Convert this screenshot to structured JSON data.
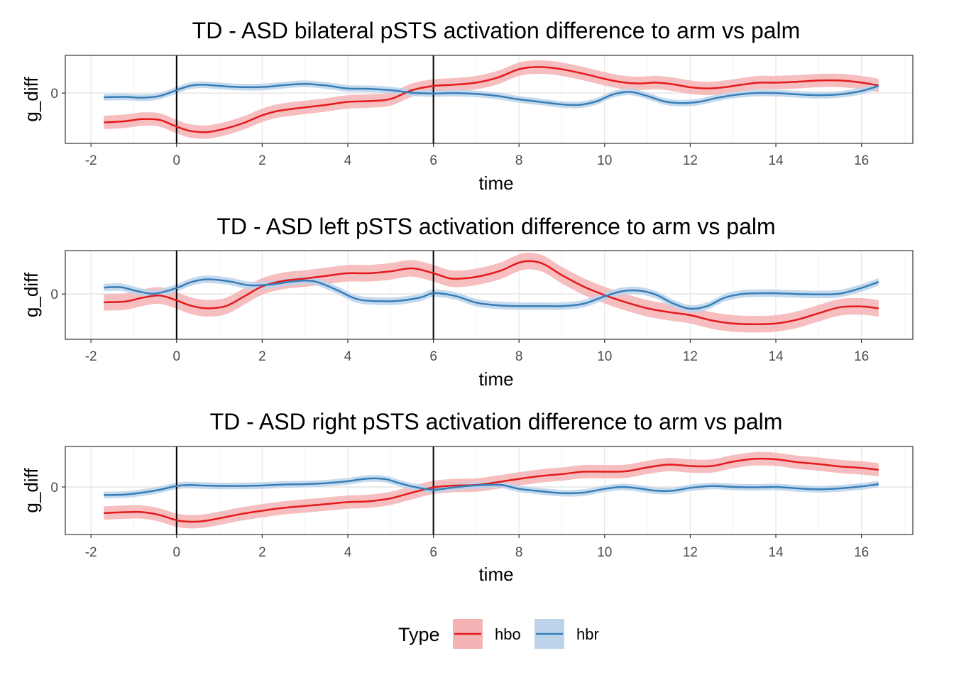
{
  "legend": {
    "title": "Type",
    "entries": [
      {
        "label": "hbo",
        "color": "#e41a1c",
        "fill": "#f4b3b4"
      },
      {
        "label": "hbr",
        "color": "#377eb8",
        "fill": "#bcd3ea"
      }
    ],
    "position": "bottom"
  },
  "chart_data": [
    {
      "type": "line",
      "title": "TD - ASD bilateral pSTS activation difference to arm vs palm",
      "xlabel": "time",
      "ylabel": "g_diff",
      "xlim": [
        -2.6,
        17.2
      ],
      "ylim": [
        -1.2,
        0.9
      ],
      "x_ticks": [
        -2,
        0,
        2,
        4,
        6,
        8,
        10,
        12,
        14,
        16
      ],
      "y_ticks": [
        0
      ],
      "vlines": [
        0,
        6
      ],
      "grid": true,
      "series": [
        {
          "name": "hbo",
          "x": [
            -1.7,
            -1.2,
            -0.8,
            -0.4,
            0,
            0.3,
            0.6,
            0.8,
            1.2,
            1.6,
            2,
            2.4,
            3,
            3.5,
            4,
            4.5,
            5,
            5.5,
            6,
            6.5,
            7,
            7.5,
            8,
            8.4,
            8.8,
            9.2,
            9.6,
            10,
            10.4,
            10.8,
            11.2,
            11.6,
            12,
            12.4,
            12.8,
            13.2,
            13.6,
            14,
            14.5,
            15,
            15.5,
            16,
            16.4
          ],
          "y": [
            -0.7,
            -0.67,
            -0.62,
            -0.64,
            -0.8,
            -0.9,
            -0.93,
            -0.92,
            -0.83,
            -0.7,
            -0.53,
            -0.42,
            -0.34,
            -0.28,
            -0.21,
            -0.19,
            -0.14,
            0.07,
            0.17,
            0.2,
            0.25,
            0.37,
            0.57,
            0.62,
            0.6,
            0.53,
            0.44,
            0.34,
            0.26,
            0.23,
            0.25,
            0.21,
            0.14,
            0.11,
            0.14,
            0.2,
            0.25,
            0.25,
            0.27,
            0.3,
            0.3,
            0.25,
            0.18
          ],
          "band": 0.16
        },
        {
          "name": "hbr",
          "x": [
            -1.7,
            -1.2,
            -0.8,
            -0.4,
            0,
            0.3,
            0.6,
            0.9,
            1.3,
            1.7,
            2.1,
            2.5,
            3,
            3.5,
            4,
            4.5,
            5,
            5.5,
            6,
            6.5,
            7,
            7.5,
            8,
            8.5,
            9,
            9.4,
            9.8,
            10.2,
            10.6,
            11,
            11.4,
            11.8,
            12.2,
            12.6,
            13,
            13.5,
            14,
            14.5,
            15,
            15.5,
            16,
            16.4
          ],
          "y": [
            -0.1,
            -0.09,
            -0.11,
            -0.07,
            0.07,
            0.17,
            0.2,
            0.18,
            0.15,
            0.14,
            0.15,
            0.19,
            0.22,
            0.18,
            0.11,
            0.1,
            0.07,
            0.01,
            -0.01,
            0,
            -0.02,
            -0.07,
            -0.15,
            -0.21,
            -0.27,
            -0.28,
            -0.2,
            -0.03,
            0.03,
            -0.07,
            -0.2,
            -0.24,
            -0.21,
            -0.12,
            -0.05,
            0,
            0,
            -0.03,
            -0.05,
            -0.03,
            0.05,
            0.17
          ],
          "band": 0.08
        }
      ]
    },
    {
      "type": "line",
      "title": "TD - ASD left pSTS activation difference to arm vs palm",
      "xlabel": "time",
      "ylabel": "g_diff",
      "xlim": [
        -2.6,
        17.2
      ],
      "ylim": [
        -1.2,
        1.15
      ],
      "x_ticks": [
        -2,
        0,
        2,
        4,
        6,
        8,
        10,
        12,
        14,
        16
      ],
      "y_ticks": [
        0
      ],
      "vlines": [
        0,
        6
      ],
      "grid": true,
      "series": [
        {
          "name": "hbo",
          "x": [
            -1.7,
            -1.2,
            -0.8,
            -0.4,
            0,
            0.3,
            0.6,
            0.9,
            1.2,
            1.6,
            2,
            2.5,
            3,
            3.5,
            4,
            4.5,
            5,
            5.5,
            6,
            6.4,
            6.8,
            7.2,
            7.6,
            8,
            8.3,
            8.6,
            9,
            9.5,
            10,
            10.5,
            11,
            11.5,
            12,
            12.5,
            13,
            13.5,
            14,
            14.5,
            15,
            15.5,
            16,
            16.4
          ],
          "y": [
            -0.22,
            -0.2,
            -0.1,
            -0.04,
            -0.17,
            -0.3,
            -0.37,
            -0.37,
            -0.3,
            -0.05,
            0.2,
            0.35,
            0.41,
            0.48,
            0.55,
            0.55,
            0.6,
            0.68,
            0.55,
            0.41,
            0.42,
            0.5,
            0.63,
            0.83,
            0.87,
            0.78,
            0.5,
            0.2,
            -0.03,
            -0.22,
            -0.38,
            -0.48,
            -0.56,
            -0.7,
            -0.78,
            -0.8,
            -0.78,
            -0.68,
            -0.51,
            -0.35,
            -0.33,
            -0.38
          ],
          "band": 0.22
        },
        {
          "name": "hbr",
          "x": [
            -1.7,
            -1.3,
            -0.9,
            -0.5,
            0,
            0.3,
            0.6,
            0.9,
            1.3,
            1.7,
            2.2,
            2.7,
            3.2,
            3.7,
            4.2,
            4.7,
            5.2,
            5.7,
            6,
            6.5,
            7,
            7.5,
            8,
            8.5,
            9,
            9.5,
            10,
            10.4,
            10.8,
            11.2,
            11.6,
            12,
            12.4,
            12.8,
            13.2,
            13.6,
            14,
            14.5,
            15,
            15.5,
            16,
            16.4
          ],
          "y": [
            0.17,
            0.18,
            0.07,
            0.01,
            0.16,
            0.3,
            0.38,
            0.38,
            0.32,
            0.23,
            0.25,
            0.33,
            0.34,
            0.13,
            -0.13,
            -0.19,
            -0.18,
            -0.09,
            0.02,
            -0.05,
            -0.23,
            -0.3,
            -0.32,
            -0.32,
            -0.32,
            -0.26,
            -0.06,
            0.07,
            0.09,
            -0.02,
            -0.25,
            -0.39,
            -0.32,
            -0.1,
            0,
            0.02,
            0.02,
            0,
            -0.01,
            0.01,
            0.16,
            0.32
          ],
          "band": 0.1
        }
      ]
    },
    {
      "type": "line",
      "title": "TD - ASD right pSTS activation difference to arm vs palm",
      "xlabel": "time",
      "ylabel": "g_diff",
      "xlim": [
        -2.6,
        17.2
      ],
      "ylim": [
        -1.0,
        0.85
      ],
      "x_ticks": [
        -2,
        0,
        2,
        4,
        6,
        8,
        10,
        12,
        14,
        16
      ],
      "y_ticks": [
        0
      ],
      "vlines": [
        0,
        6
      ],
      "grid": true,
      "series": [
        {
          "name": "hbo",
          "x": [
            -1.7,
            -1.2,
            -0.8,
            -0.4,
            0,
            0.3,
            0.6,
            1,
            1.5,
            2,
            2.5,
            3,
            3.5,
            4,
            4.5,
            5,
            5.5,
            6,
            6.5,
            7,
            7.5,
            8,
            8.5,
            9,
            9.5,
            10,
            10.5,
            11,
            11.5,
            12,
            12.5,
            13,
            13.5,
            14,
            14.5,
            15,
            15.5,
            16,
            16.4
          ],
          "y": [
            -0.55,
            -0.53,
            -0.53,
            -0.59,
            -0.7,
            -0.73,
            -0.72,
            -0.66,
            -0.57,
            -0.5,
            -0.44,
            -0.4,
            -0.36,
            -0.32,
            -0.3,
            -0.24,
            -0.12,
            -0.01,
            0.03,
            0.04,
            0.1,
            0.17,
            0.23,
            0.27,
            0.32,
            0.32,
            0.33,
            0.41,
            0.47,
            0.44,
            0.44,
            0.53,
            0.59,
            0.58,
            0.52,
            0.48,
            0.43,
            0.4,
            0.36
          ],
          "band": 0.14
        },
        {
          "name": "hbr",
          "x": [
            -1.7,
            -1.2,
            -0.8,
            -0.4,
            0,
            0.3,
            0.6,
            1,
            1.5,
            2,
            2.5,
            3,
            3.5,
            4,
            4.3,
            4.6,
            4.9,
            5.2,
            5.5,
            5.8,
            6,
            6.4,
            6.8,
            7.2,
            7.6,
            8,
            8.5,
            9,
            9.5,
            10,
            10.4,
            10.8,
            11.2,
            11.6,
            12,
            12.5,
            13,
            13.5,
            14,
            14.5,
            15,
            15.5,
            16,
            16.4
          ],
          "y": [
            -0.17,
            -0.16,
            -0.12,
            -0.06,
            0.02,
            0.04,
            0.03,
            0.02,
            0.02,
            0.03,
            0.05,
            0.06,
            0.08,
            0.12,
            0.16,
            0.18,
            0.16,
            0.08,
            0.01,
            -0.04,
            -0.06,
            -0.02,
            0.02,
            0.04,
            0.04,
            -0.04,
            -0.09,
            -0.13,
            -0.12,
            -0.04,
            0.0,
            -0.03,
            -0.08,
            -0.08,
            -0.02,
            0.02,
            0.0,
            -0.01,
            0.0,
            -0.03,
            -0.05,
            -0.03,
            0.01,
            0.06
          ],
          "band": 0.07
        }
      ]
    }
  ]
}
